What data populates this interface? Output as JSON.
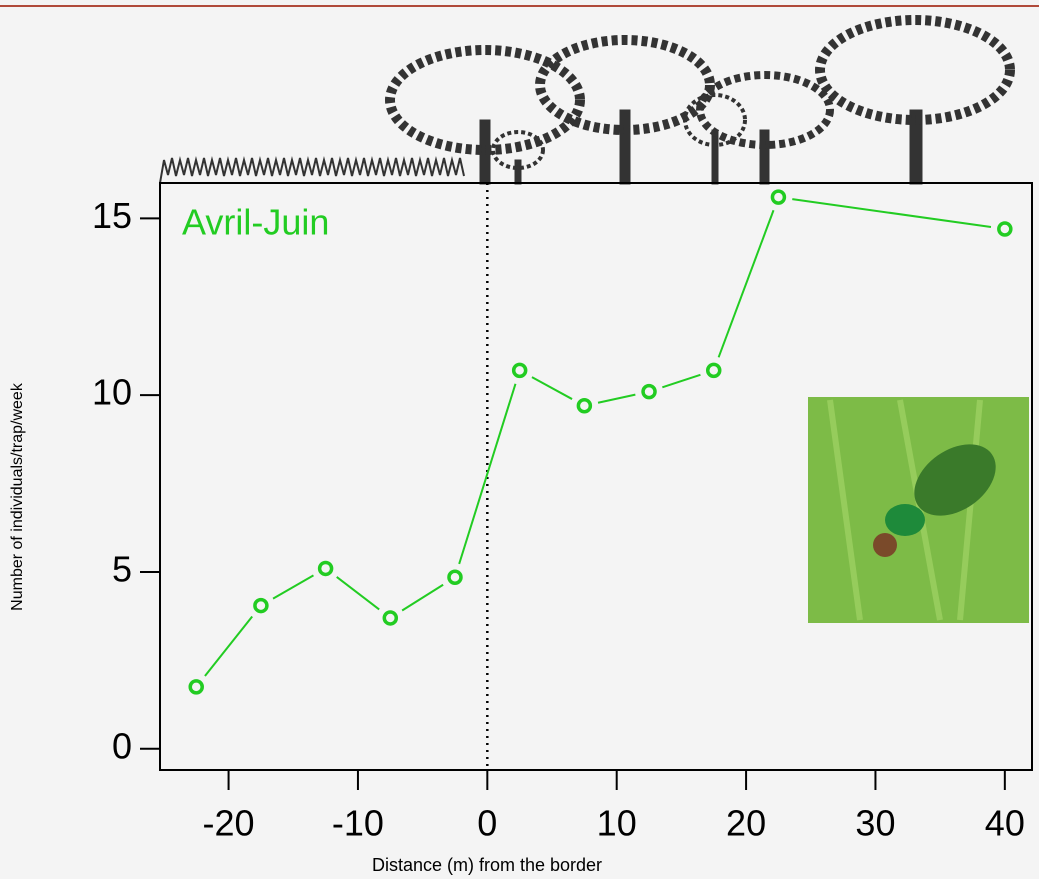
{
  "chart_data": {
    "type": "line",
    "annotation": "Avril-Juin",
    "x_label": "Distance (m) from the border",
    "y_label": "Number of individuals/trap/week",
    "x": [
      -22.5,
      -17.5,
      -12.5,
      -7.5,
      -2.5,
      2.5,
      7.5,
      12.5,
      17.5,
      22.5,
      40
    ],
    "series": [
      {
        "color": "#22cc22",
        "values": [
          1.75,
          4.05,
          5.1,
          3.7,
          4.85,
          10.7,
          9.7,
          10.1,
          10.7,
          15.6,
          14.7
        ]
      }
    ],
    "xlim": [
      -25.3,
      42.1
    ],
    "ylim": [
      -0.6,
      16
    ],
    "xticks": [
      -20,
      -10,
      0,
      10,
      20,
      30,
      40
    ],
    "yticks": [
      0,
      5,
      10,
      15
    ],
    "vline": 0
  }
}
